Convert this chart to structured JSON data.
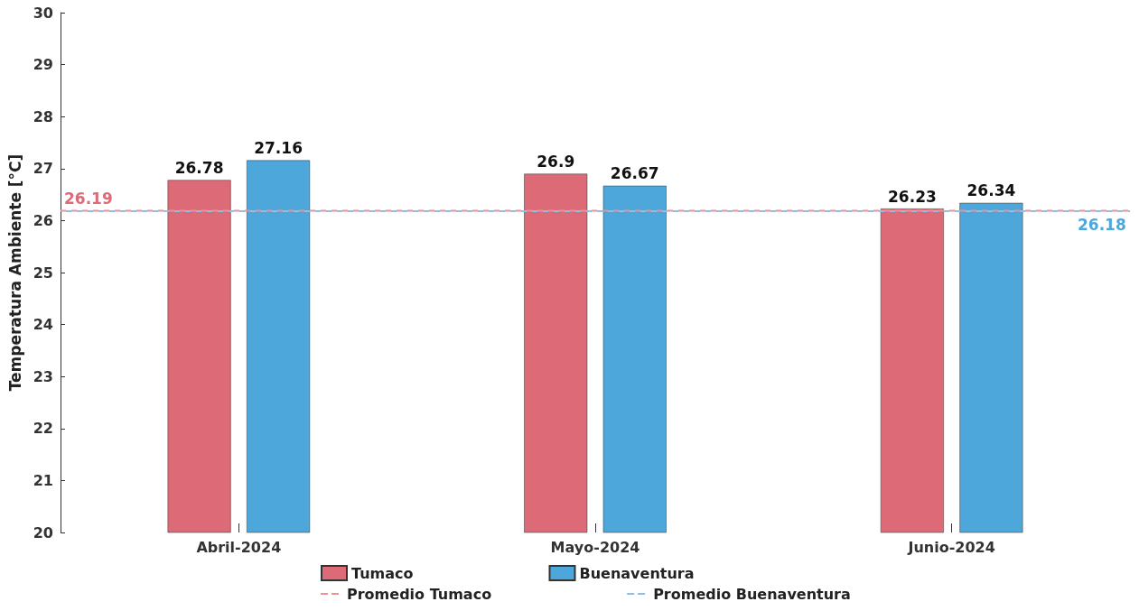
{
  "chart_data": {
    "type": "bar",
    "ylabel": "Temperatura Ambiente [°C]",
    "categories": [
      "Abril-2024",
      "Mayo-2024",
      "Junio-2024"
    ],
    "series": [
      {
        "name": "Tumaco",
        "color": "#dc6b77",
        "values": [
          26.78,
          26.9,
          26.23
        ]
      },
      {
        "name": "Buenaventura",
        "color": "#4ea7db",
        "values": [
          27.16,
          26.67,
          26.34
        ]
      }
    ],
    "ylim": [
      20,
      30
    ],
    "yticks": [
      20,
      21,
      22,
      23,
      24,
      25,
      26,
      27,
      28,
      29,
      30
    ],
    "ref_lines": [
      {
        "axis": "y",
        "value": 26.19,
        "label": "Promedio Tumaco",
        "color": "#e8929c",
        "line_style": "dashed"
      },
      {
        "axis": "y",
        "value": 26.18,
        "label": "Promedio Buenaventura",
        "color": "#8fbfe3",
        "line_style": "dashed"
      }
    ],
    "annotations": [
      "26.19",
      "26.18"
    ],
    "data_labels": true,
    "grid": false,
    "legend": "bottom"
  }
}
